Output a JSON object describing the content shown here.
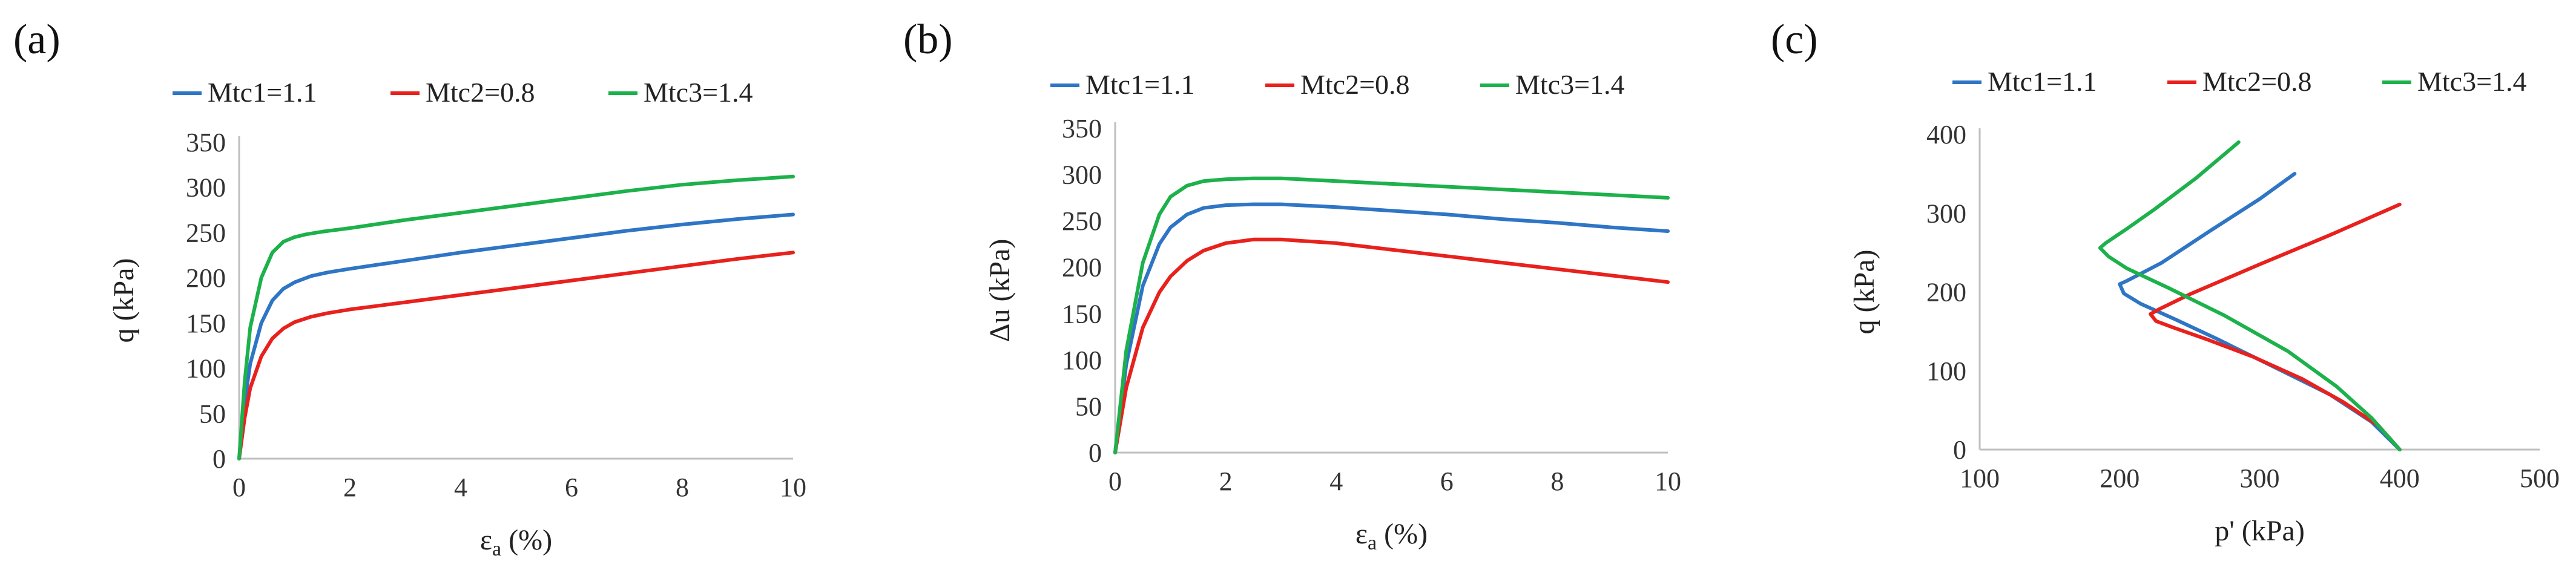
{
  "chart_data": [
    {
      "type": "line",
      "panel_label": "(a)",
      "xlabel": "εa (%)",
      "ylabel": "q (kPa)",
      "xlim": [
        0,
        10
      ],
      "ylim": [
        0,
        350
      ],
      "xticks": [
        0,
        2,
        4,
        6,
        8,
        10
      ],
      "yticks": [
        0,
        50,
        100,
        150,
        200,
        250,
        300,
        350
      ],
      "legend_position": "top",
      "series": [
        {
          "name": "Mtc1=1.1",
          "color": "#2e75c5",
          "x": [
            0,
            0.1,
            0.2,
            0.4,
            0.6,
            0.8,
            1.0,
            1.3,
            1.6,
            2,
            3,
            4,
            5,
            6,
            7,
            8,
            9,
            10
          ],
          "y": [
            0,
            62,
            105,
            150,
            175,
            188,
            195,
            202,
            206,
            210,
            219,
            228,
            236,
            244,
            252,
            259,
            265,
            270
          ]
        },
        {
          "name": "Mtc2=0.8",
          "color": "#e8211d",
          "x": [
            0,
            0.1,
            0.2,
            0.4,
            0.6,
            0.8,
            1.0,
            1.3,
            1.6,
            2,
            3,
            4,
            5,
            6,
            7,
            8,
            9,
            10
          ],
          "y": [
            0,
            45,
            78,
            113,
            133,
            144,
            151,
            157,
            161,
            165,
            173,
            181,
            189,
            197,
            205,
            213,
            221,
            228
          ]
        },
        {
          "name": "Mtc3=1.4",
          "color": "#1db14b",
          "x": [
            0,
            0.1,
            0.2,
            0.4,
            0.6,
            0.8,
            1.0,
            1.2,
            1.5,
            2,
            3,
            4,
            5,
            6,
            7,
            8,
            9,
            10
          ],
          "y": [
            0,
            85,
            145,
            200,
            228,
            240,
            245,
            248,
            251,
            255,
            264,
            272,
            280,
            288,
            296,
            303,
            308,
            312
          ]
        }
      ]
    },
    {
      "type": "line",
      "panel_label": "(b)",
      "xlabel": "εa (%)",
      "ylabel": "Δu (kPa)",
      "xlim": [
        0,
        10
      ],
      "ylim": [
        0,
        350
      ],
      "xticks": [
        0,
        2,
        4,
        6,
        8,
        10
      ],
      "yticks": [
        0,
        50,
        100,
        150,
        200,
        250,
        300,
        350
      ],
      "legend_position": "top",
      "series": [
        {
          "name": "Mtc1=1.1",
          "color": "#2e75c5",
          "x": [
            0,
            0.2,
            0.5,
            0.8,
            1.0,
            1.3,
            1.6,
            2.0,
            2.5,
            3,
            4,
            5,
            6,
            7,
            8,
            9,
            10
          ],
          "y": [
            0,
            95,
            180,
            225,
            243,
            257,
            264,
            267,
            268,
            268,
            265,
            261,
            257,
            252,
            248,
            243,
            239
          ]
        },
        {
          "name": "Mtc2=0.8",
          "color": "#e8211d",
          "x": [
            0,
            0.2,
            0.5,
            0.8,
            1.0,
            1.3,
            1.6,
            2.0,
            2.5,
            3,
            4,
            5,
            6,
            7,
            8,
            9,
            10
          ],
          "y": [
            0,
            70,
            135,
            173,
            190,
            207,
            218,
            226,
            230,
            230,
            226,
            219,
            212,
            205,
            198,
            191,
            184
          ]
        },
        {
          "name": "Mtc3=1.4",
          "color": "#1db14b",
          "x": [
            0,
            0.2,
            0.5,
            0.8,
            1.0,
            1.3,
            1.6,
            2.0,
            2.5,
            3,
            4,
            5,
            6,
            7,
            8,
            9,
            10
          ],
          "y": [
            0,
            110,
            205,
            257,
            276,
            288,
            293,
            295,
            296,
            296,
            293,
            290,
            287,
            284,
            281,
            278,
            275
          ]
        }
      ]
    },
    {
      "type": "line",
      "panel_label": "(c)",
      "xlabel": "p' (kPa)",
      "ylabel": "q (kPa)",
      "xlim": [
        100,
        500
      ],
      "ylim": [
        0,
        400
      ],
      "xticks": [
        100,
        200,
        300,
        400,
        500
      ],
      "yticks": [
        0,
        100,
        200,
        300,
        400
      ],
      "legend_position": "top",
      "series": [
        {
          "name": "Mtc1=1.1",
          "color": "#2e75c5",
          "x": [
            400,
            380,
            350,
            310,
            270,
            240,
            215,
            203,
            200,
            205,
            230,
            265,
            300,
            325
          ],
          "y": [
            0,
            35,
            70,
            105,
            140,
            165,
            185,
            198,
            210,
            214,
            237,
            278,
            318,
            350
          ]
        },
        {
          "name": "Mtc2=0.8",
          "color": "#e8211d",
          "x": [
            400,
            385,
            360,
            330,
            295,
            262,
            238,
            226,
            222,
            228,
            250,
            300,
            350,
            400
          ],
          "y": [
            0,
            30,
            60,
            90,
            118,
            140,
            155,
            163,
            172,
            178,
            197,
            235,
            272,
            311
          ]
        },
        {
          "name": "Mtc3=1.4",
          "color": "#1db14b",
          "x": [
            400,
            380,
            355,
            320,
            275,
            235,
            205,
            192,
            186,
            190,
            205,
            225,
            255,
            285
          ],
          "y": [
            0,
            40,
            80,
            125,
            170,
            205,
            230,
            245,
            256,
            262,
            280,
            305,
            345,
            390
          ]
        }
      ]
    }
  ]
}
